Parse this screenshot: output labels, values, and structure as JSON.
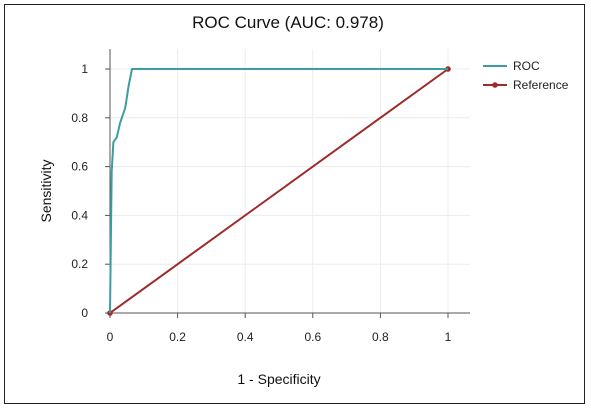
{
  "chart_data": {
    "type": "line",
    "title": "ROC Curve (AUC: 0.978)",
    "xlabel": "1 - Specificity",
    "ylabel": "Sensitivity",
    "xlim": [
      0,
      1
    ],
    "ylim": [
      0,
      1
    ],
    "xticks": [
      "0",
      "0.2",
      "0.4",
      "0.6",
      "0.8",
      "1"
    ],
    "yticks": [
      "0",
      "0.2",
      "0.4",
      "0.6",
      "0.8",
      "1"
    ],
    "grid": true,
    "legend_position": "right",
    "series": [
      {
        "name": "ROC",
        "color": "#3a9ea0",
        "markers": false,
        "x": [
          0,
          0.005,
          0.01,
          0.02,
          0.03,
          0.035,
          0.045,
          0.055,
          0.065,
          1
        ],
        "y": [
          0,
          0.58,
          0.7,
          0.72,
          0.78,
          0.8,
          0.84,
          0.93,
          1.0,
          1.0
        ]
      },
      {
        "name": "Reference",
        "color": "#9e2a2a",
        "markers": true,
        "x": [
          0,
          1
        ],
        "y": [
          0,
          1
        ]
      }
    ]
  }
}
